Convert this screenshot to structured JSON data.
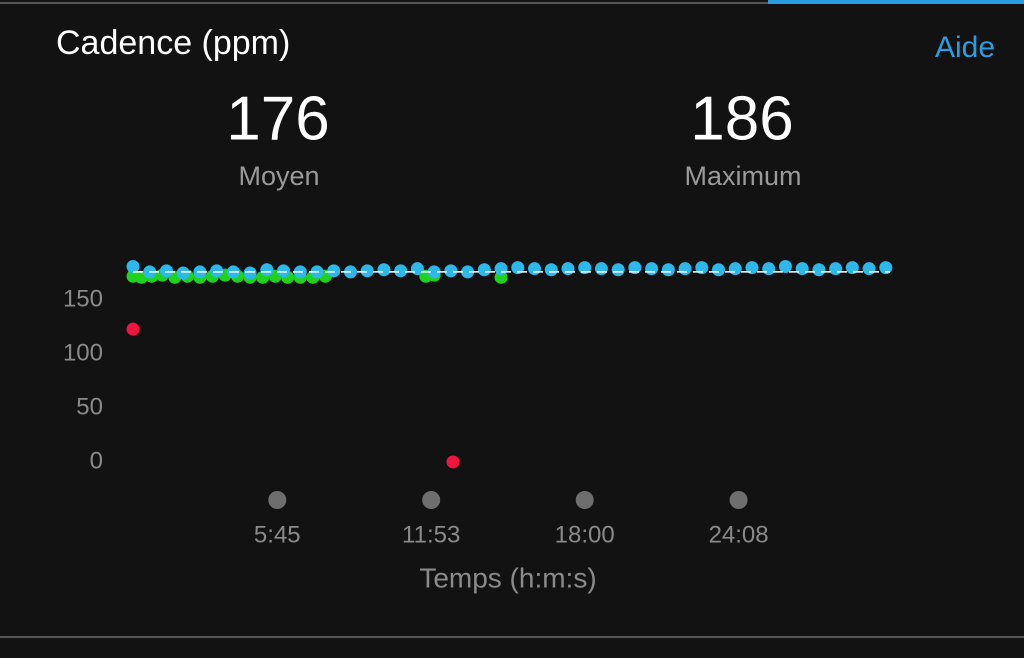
{
  "help_link": "Aide",
  "stats": [
    {
      "value": 176,
      "label": "Moyen"
    },
    {
      "value": 186,
      "label": "Maximum"
    }
  ],
  "chart_data": {
    "type": "scatter",
    "title": "Cadence (ppm)",
    "x_label": "Temps (h:m:s)",
    "xlim": [
      0,
      1810
    ],
    "ylim": [
      -8,
      200
    ],
    "xticks": [
      {
        "value": 345,
        "label": "5:45"
      },
      {
        "value": 713,
        "label": "11:53"
      },
      {
        "value": 1080,
        "label": "18:00"
      },
      {
        "value": 1448,
        "label": "24:08"
      }
    ],
    "yticks": [
      0,
      50,
      100,
      150
    ],
    "series": [
      {
        "color": "#1ed21e",
        "x": [
          0,
          20,
          45,
          70,
          100,
          130,
          160,
          190,
          220,
          250,
          280,
          310,
          340,
          370,
          400,
          430,
          460,
          700,
          720,
          880
        ],
        "values": [
          172,
          171,
          172,
          173,
          171,
          172,
          171,
          172,
          173,
          172,
          171,
          171,
          172,
          171,
          171,
          171,
          172,
          172,
          173,
          171
        ]
      },
      {
        "color": "#2cb8ea",
        "x": [
          0,
          40,
          80,
          120,
          160,
          200,
          240,
          280,
          320,
          360,
          400,
          440,
          480,
          520,
          560,
          600,
          640,
          680,
          720,
          760,
          800,
          840,
          880,
          920,
          960,
          1000,
          1040,
          1080,
          1120,
          1160,
          1200,
          1240,
          1280,
          1320,
          1360,
          1400,
          1440,
          1480,
          1520,
          1560,
          1600,
          1640,
          1680,
          1720,
          1760,
          1800
        ],
        "values": [
          181,
          176,
          177,
          175,
          176,
          177,
          176,
          175,
          178,
          177,
          176,
          176,
          177,
          176,
          177,
          178,
          177,
          179,
          176,
          177,
          176,
          178,
          179,
          180,
          179,
          178,
          179,
          180,
          179,
          178,
          180,
          179,
          178,
          179,
          180,
          178,
          179,
          180,
          179,
          181,
          179,
          178,
          179,
          180,
          179,
          180
        ]
      },
      {
        "color": "#f0143f",
        "x": [
          0,
          765
        ],
        "values": [
          123,
          0
        ]
      }
    ]
  }
}
